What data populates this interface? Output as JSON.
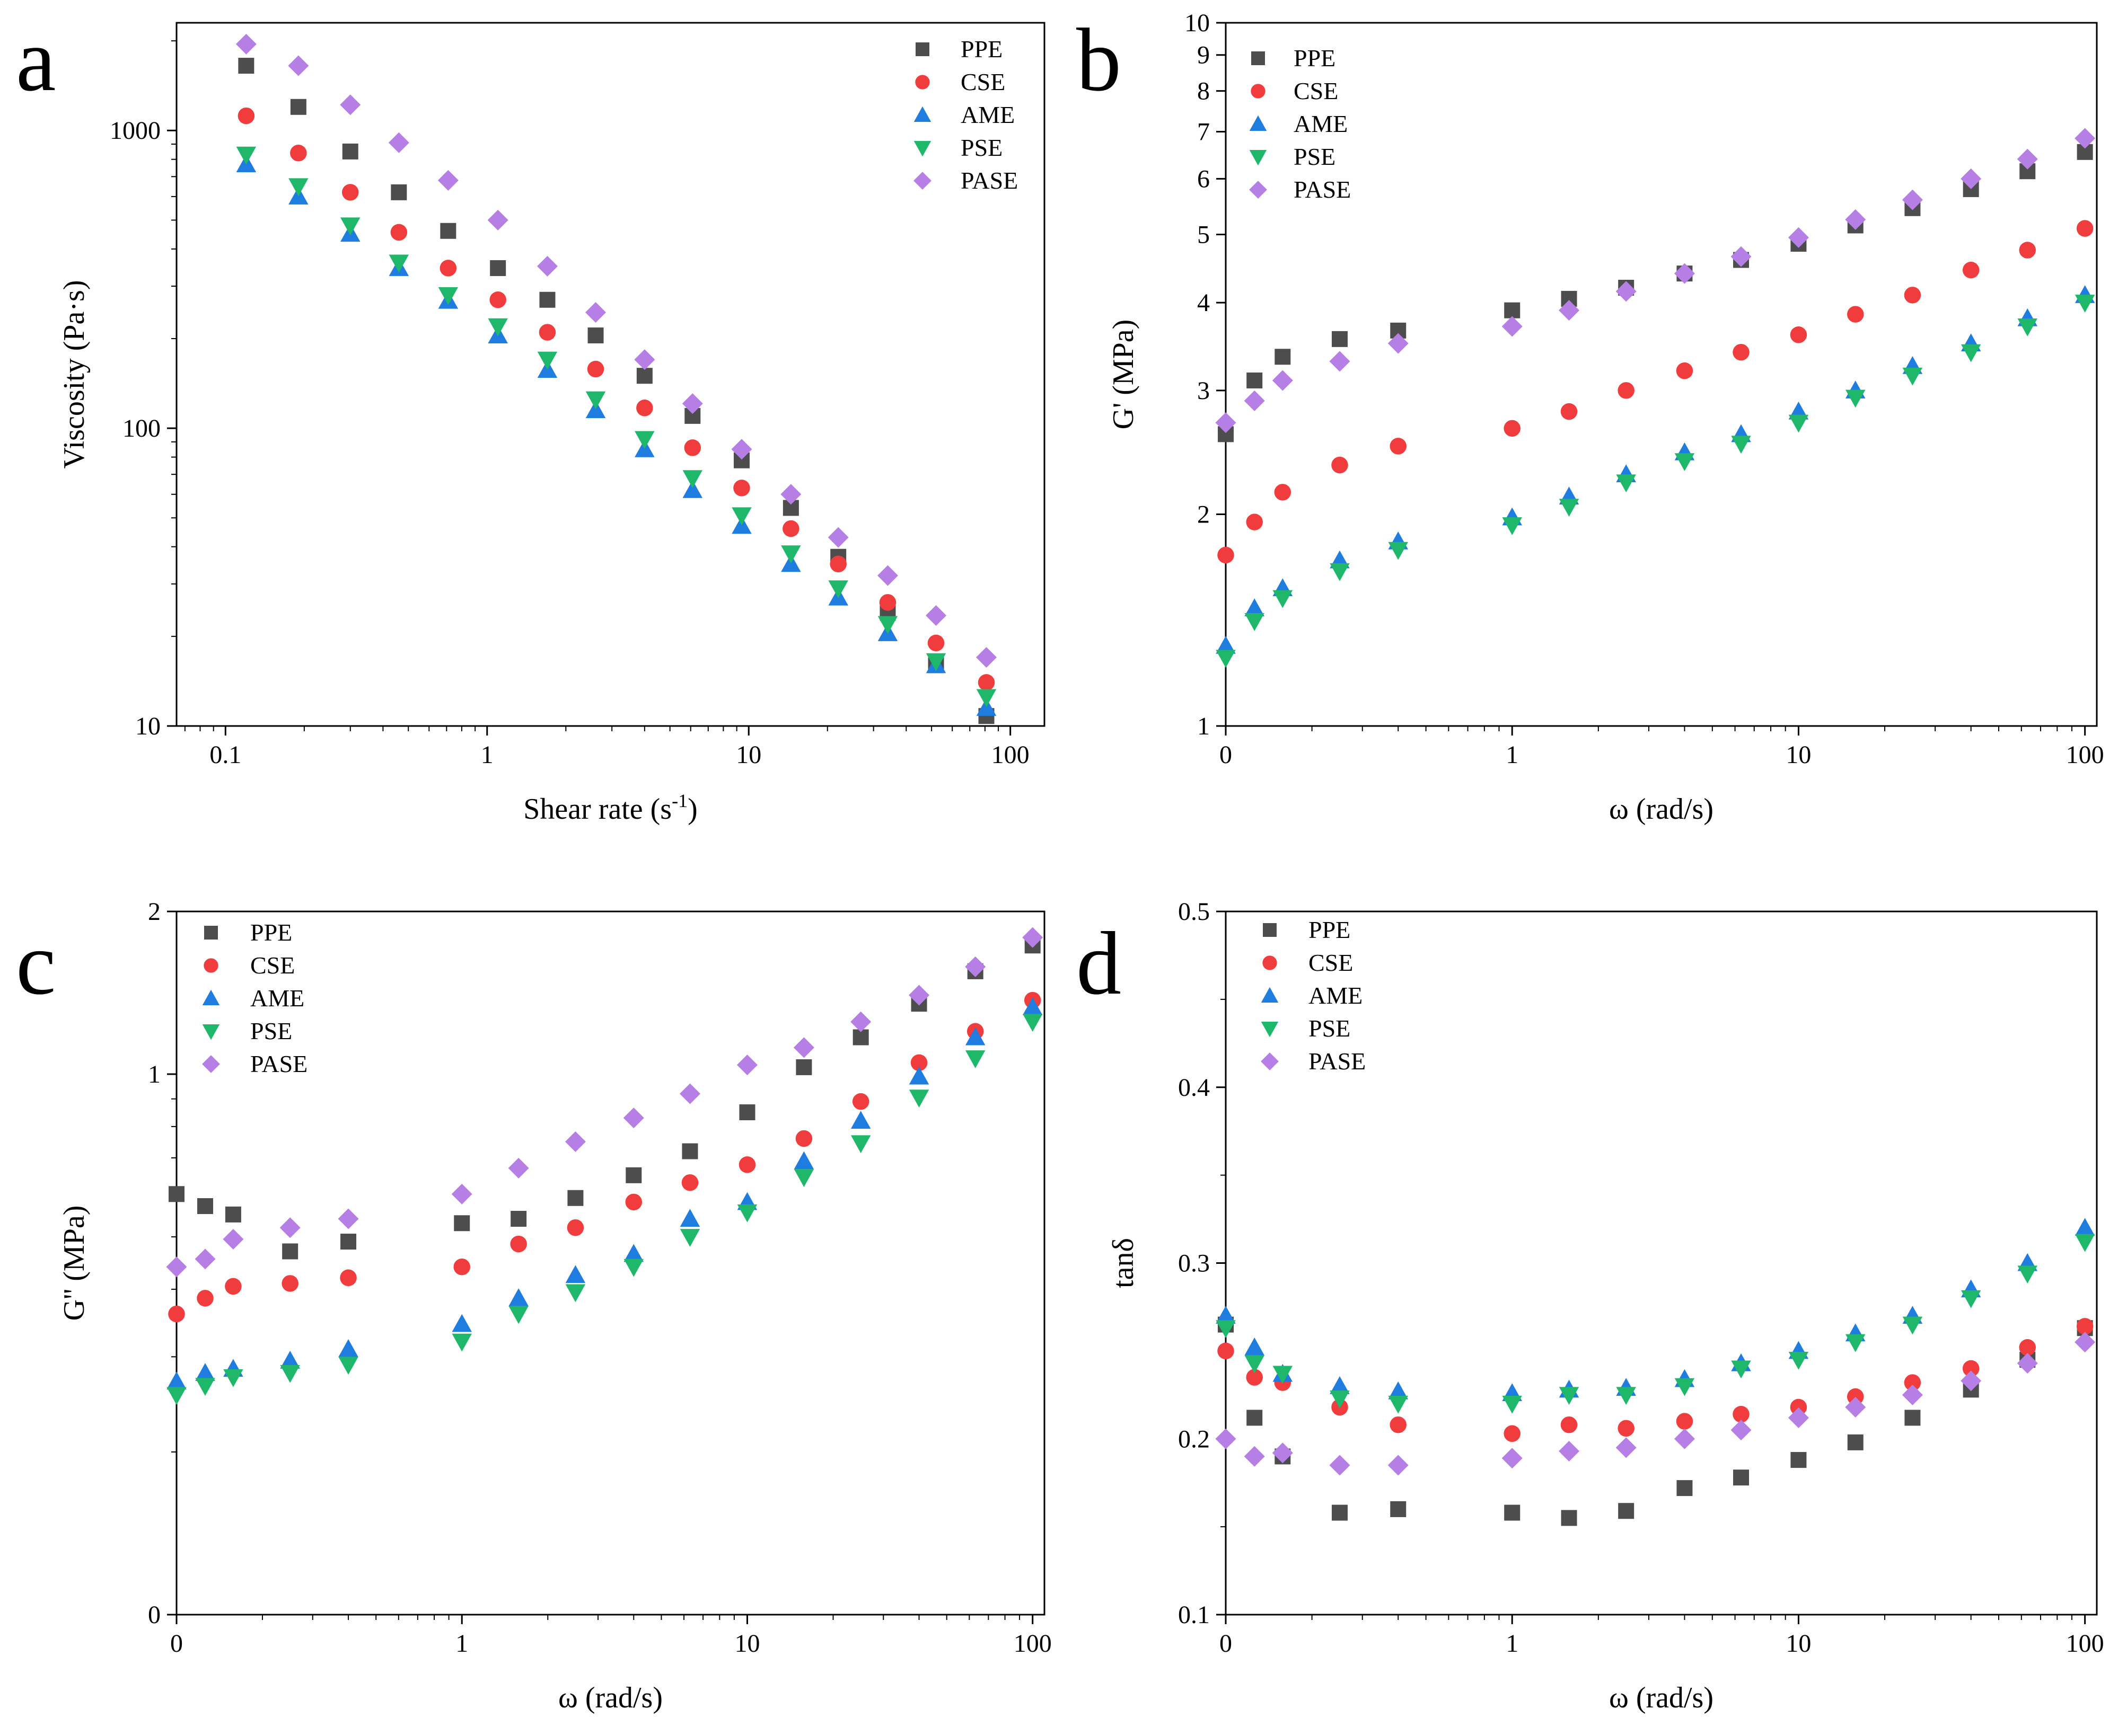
{
  "colors": {
    "PPE": "#4d4d4d",
    "CSE": "#f03c3c",
    "AME": "#1f7de0",
    "PSE": "#1fb86a",
    "PASE": "#b57fe6"
  },
  "series_markers": {
    "PPE": "square",
    "CSE": "circle",
    "AME": "triangle-up",
    "PSE": "triangle-down",
    "PASE": "diamond"
  },
  "chart_data": [
    {
      "panel": "a",
      "type": "scatter",
      "title": "",
      "xlabel": "Shear rate (s",
      "xlabel_sup": "-1",
      "xlabel_end": ")",
      "ylabel": "Viscosity (Pa·s)",
      "xscale": "log",
      "yscale": "log",
      "xlim": [
        0.065,
        135
      ],
      "ylim": [
        10,
        2300
      ],
      "xticks": [
        0.1,
        1,
        10,
        100
      ],
      "xtick_labels": [
        "0.1",
        "1",
        "10",
        "100"
      ],
      "yticks": [
        10,
        100,
        1000
      ],
      "ytick_labels": [
        "10",
        "100",
        "1000"
      ],
      "legend": [
        "PPE",
        "CSE",
        "AME",
        "PSE",
        "PASE"
      ],
      "legend_position": "top-right",
      "x": [
        0.12,
        0.19,
        0.3,
        0.46,
        0.71,
        1.1,
        1.7,
        2.6,
        4,
        6.1,
        9.4,
        14.5,
        22,
        34,
        52,
        81
      ],
      "series": [
        {
          "name": "PPE",
          "values": [
            1650,
            1200,
            850,
            620,
            460,
            345,
            270,
            205,
            150,
            110,
            78,
            54,
            37,
            24,
            16,
            10.8
          ]
        },
        {
          "name": "CSE",
          "values": [
            1120,
            840,
            620,
            455,
            345,
            270,
            210,
            158,
            117,
            86,
            63,
            46,
            35,
            26,
            19,
            14
          ]
        },
        {
          "name": "AME",
          "values": [
            770,
            600,
            450,
            345,
            268,
            205,
            157,
            115,
            85,
            62,
            47,
            35,
            27,
            20.5,
            16,
            11.5
          ]
        },
        {
          "name": "PSE",
          "values": [
            830,
            650,
            480,
            360,
            280,
            220,
            170,
            125,
            92,
            68,
            51,
            38,
            29,
            22,
            16.5,
            12.5
          ]
        },
        {
          "name": "PASE",
          "values": [
            1950,
            1650,
            1220,
            910,
            680,
            500,
            350,
            245,
            170,
            121,
            85,
            60,
            43,
            32,
            23.5,
            17
          ]
        }
      ]
    },
    {
      "panel": "b",
      "type": "scatter",
      "title": "",
      "xlabel": "ω (rad/s)",
      "ylabel": "G' (MPa)",
      "xscale": "log",
      "yscale": "log",
      "xlim": [
        0.1,
        110
      ],
      "ylim": [
        1,
        10
      ],
      "xticks": [
        0.1,
        1,
        10,
        100
      ],
      "xtick_labels": [
        "0",
        "1",
        "10",
        "100"
      ],
      "yticks": [
        1,
        2,
        3,
        4,
        5,
        6,
        7,
        8,
        9,
        10
      ],
      "ytick_labels": [
        "1",
        "2",
        "3",
        "4",
        "5",
        "6",
        "7",
        "8",
        "9",
        "10"
      ],
      "legend": [
        "PPE",
        "CSE",
        "AME",
        "PSE",
        "PASE"
      ],
      "legend_position": "top-left",
      "x": [
        0.1,
        0.126,
        0.158,
        0.25,
        0.4,
        1,
        1.58,
        2.5,
        4,
        6.3,
        10,
        15.8,
        25,
        40,
        63,
        100
      ],
      "series": [
        {
          "name": "PPE",
          "values": [
            2.6,
            3.1,
            3.35,
            3.55,
            3.65,
            3.9,
            4.05,
            4.2,
            4.4,
            4.6,
            4.85,
            5.15,
            5.45,
            5.8,
            6.15,
            6.55
          ]
        },
        {
          "name": "CSE",
          "values": [
            1.75,
            1.95,
            2.15,
            2.35,
            2.5,
            2.65,
            2.8,
            3.0,
            3.2,
            3.4,
            3.6,
            3.85,
            4.1,
            4.45,
            4.75,
            5.1
          ]
        },
        {
          "name": "AME",
          "values": [
            1.3,
            1.47,
            1.57,
            1.72,
            1.83,
            1.98,
            2.12,
            2.28,
            2.45,
            2.6,
            2.8,
            3.0,
            3.25,
            3.5,
            3.8,
            4.1
          ]
        },
        {
          "name": "PSE",
          "values": [
            1.25,
            1.41,
            1.52,
            1.66,
            1.78,
            1.93,
            2.05,
            2.22,
            2.38,
            2.52,
            2.7,
            2.93,
            3.15,
            3.4,
            3.7,
            4.0
          ]
        },
        {
          "name": "PASE",
          "values": [
            2.7,
            2.9,
            3.1,
            3.3,
            3.5,
            3.7,
            3.9,
            4.15,
            4.4,
            4.65,
            4.95,
            5.25,
            5.6,
            6.0,
            6.4,
            6.85
          ]
        }
      ]
    },
    {
      "panel": "c",
      "type": "scatter",
      "title": "",
      "xlabel": "ω (rad/s)",
      "ylabel": "G'' (MPa)",
      "xscale": "log",
      "yscale": "log",
      "xlim": [
        0.1,
        110
      ],
      "ylim": [
        0.1,
        2
      ],
      "xticks": [
        0.1,
        1,
        10,
        100
      ],
      "xtick_labels": [
        "0",
        "1",
        "10",
        "100"
      ],
      "yticks": [
        0.1,
        1,
        2
      ],
      "ytick_labels": [
        "0",
        "1",
        "2"
      ],
      "legend": [
        "PPE",
        "CSE",
        "AME",
        "PSE",
        "PASE"
      ],
      "legend_position": "top-left",
      "x": [
        0.1,
        0.126,
        0.158,
        0.25,
        0.4,
        1,
        1.58,
        2.5,
        4,
        6.3,
        10,
        15.8,
        25,
        40,
        63,
        100
      ],
      "series": [
        {
          "name": "PPE",
          "values": [
            0.6,
            0.57,
            0.55,
            0.47,
            0.49,
            0.53,
            0.54,
            0.59,
            0.65,
            0.72,
            0.85,
            1.03,
            1.17,
            1.35,
            1.55,
            1.73
          ]
        },
        {
          "name": "CSE",
          "values": [
            0.36,
            0.385,
            0.405,
            0.41,
            0.42,
            0.44,
            0.485,
            0.52,
            0.58,
            0.63,
            0.68,
            0.76,
            0.89,
            1.05,
            1.2,
            1.37
          ]
        },
        {
          "name": "AME",
          "values": [
            0.27,
            0.28,
            0.285,
            0.295,
            0.31,
            0.345,
            0.385,
            0.425,
            0.465,
            0.54,
            0.58,
            0.69,
            0.82,
            0.99,
            1.17,
            1.33
          ]
        },
        {
          "name": "PSE",
          "values": [
            0.255,
            0.265,
            0.275,
            0.28,
            0.29,
            0.32,
            0.36,
            0.395,
            0.44,
            0.5,
            0.555,
            0.645,
            0.745,
            0.905,
            1.07,
            1.25
          ]
        },
        {
          "name": "PASE",
          "values": [
            0.44,
            0.455,
            0.495,
            0.52,
            0.54,
            0.6,
            0.67,
            0.75,
            0.83,
            0.92,
            1.04,
            1.12,
            1.25,
            1.4,
            1.58,
            1.79
          ]
        }
      ]
    },
    {
      "panel": "d",
      "type": "scatter",
      "title": "",
      "xlabel": "ω (rad/s)",
      "ylabel": "tanδ",
      "xscale": "log",
      "yscale": "linear",
      "xlim": [
        0.1,
        110
      ],
      "ylim": [
        0.1,
        0.5
      ],
      "xticks": [
        0.1,
        1,
        10,
        100
      ],
      "xtick_labels": [
        "0",
        "1",
        "10",
        "100"
      ],
      "yticks": [
        0.1,
        0.2,
        0.3,
        0.4,
        0.5
      ],
      "ytick_labels": [
        "0.1",
        "0.2",
        "0.3",
        "0.4",
        "0.5"
      ],
      "legend": [
        "PPE",
        "CSE",
        "AME",
        "PSE",
        "PASE"
      ],
      "legend_position": "top-left",
      "x": [
        0.1,
        0.126,
        0.158,
        0.25,
        0.4,
        1,
        1.58,
        2.5,
        4,
        6.3,
        10,
        15.8,
        25,
        40,
        63,
        100
      ],
      "series": [
        {
          "name": "PPE",
          "values": [
            0.265,
            0.212,
            0.19,
            0.158,
            0.16,
            0.158,
            0.155,
            0.159,
            0.172,
            0.178,
            0.188,
            0.198,
            0.212,
            0.228,
            0.245,
            0.263
          ]
        },
        {
          "name": "CSE",
          "values": [
            0.25,
            0.235,
            0.232,
            0.218,
            0.208,
            0.203,
            0.208,
            0.206,
            0.21,
            0.214,
            0.218,
            0.224,
            0.232,
            0.24,
            0.252,
            0.264
          ]
        },
        {
          "name": "AME",
          "values": [
            0.27,
            0.252,
            0.237,
            0.23,
            0.227,
            0.226,
            0.228,
            0.229,
            0.234,
            0.243,
            0.25,
            0.26,
            0.27,
            0.285,
            0.3,
            0.32
          ]
        },
        {
          "name": "PSE",
          "values": [
            0.263,
            0.243,
            0.237,
            0.223,
            0.22,
            0.22,
            0.225,
            0.225,
            0.23,
            0.24,
            0.245,
            0.255,
            0.265,
            0.28,
            0.294,
            0.312
          ]
        },
        {
          "name": "PASE",
          "values": [
            0.2,
            0.19,
            0.192,
            0.185,
            0.185,
            0.189,
            0.193,
            0.195,
            0.2,
            0.205,
            0.212,
            0.218,
            0.225,
            0.233,
            0.243,
            0.255
          ]
        }
      ]
    }
  ]
}
